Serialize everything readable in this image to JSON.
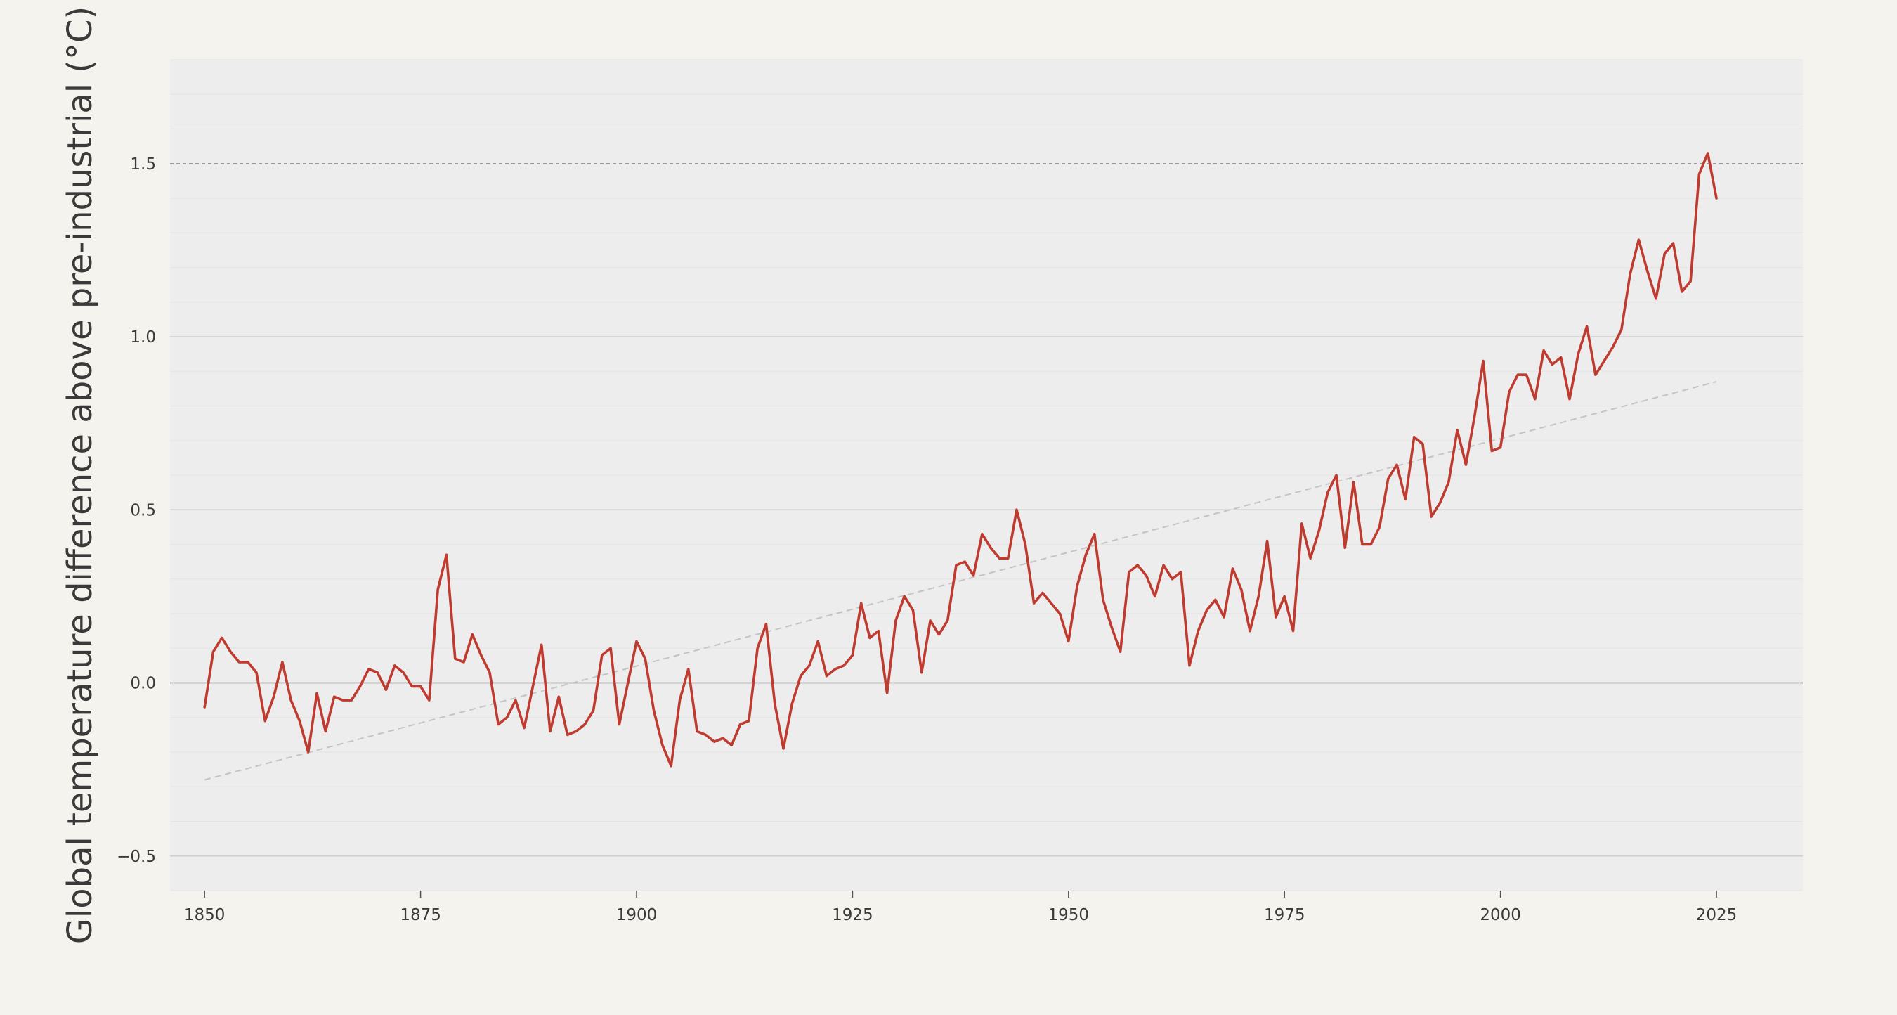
{
  "chart_data": {
    "type": "line",
    "title": "",
    "xlabel": "",
    "ylabel": "Global temperature difference above pre-industrial (°C)",
    "xlim": [
      1846,
      2035
    ],
    "ylim": [
      -0.6,
      1.8
    ],
    "xticks": [
      1850,
      1875,
      1900,
      1925,
      1950,
      1975,
      2000,
      2025
    ],
    "xtick_labels": [
      "1850",
      "1875",
      "1900",
      "1925",
      "1950",
      "1975",
      "2000",
      "2025"
    ],
    "yticks": [
      -0.5,
      0.0,
      0.5,
      1.0,
      1.5
    ],
    "ytick_labels": [
      "−0.5",
      "0.0",
      "0.5",
      "1.0",
      "1.5"
    ],
    "grid": true,
    "reference_lines": [
      {
        "y": 1.5,
        "style": "dashed",
        "color": "#9a9a9a"
      },
      {
        "y": 0.0,
        "style": "solid",
        "color": "#8a8a8a"
      }
    ],
    "series": [
      {
        "color": "#bf3a2f",
        "x_start": 1850,
        "x_step": 1,
        "values": [
          -0.07,
          0.09,
          0.13,
          0.09,
          0.06,
          0.06,
          0.03,
          -0.11,
          -0.04,
          0.06,
          -0.05,
          -0.11,
          -0.2,
          -0.03,
          -0.14,
          -0.04,
          -0.05,
          -0.05,
          -0.01,
          0.04,
          0.03,
          -0.02,
          0.05,
          0.03,
          -0.01,
          -0.01,
          -0.05,
          0.27,
          0.37,
          0.07,
          0.06,
          0.14,
          0.08,
          0.03,
          -0.12,
          -0.1,
          -0.05,
          -0.13,
          -0.01,
          0.11,
          -0.14,
          -0.04,
          -0.15,
          -0.14,
          -0.12,
          -0.08,
          0.08,
          0.1,
          -0.12,
          0.0,
          0.12,
          0.07,
          -0.08,
          -0.18,
          -0.24,
          -0.05,
          0.04,
          -0.14,
          -0.15,
          -0.17,
          -0.16,
          -0.18,
          -0.12,
          -0.11,
          0.1,
          0.17,
          -0.06,
          -0.19,
          -0.06,
          0.02,
          0.05,
          0.12,
          0.02,
          0.04,
          0.05,
          0.08,
          0.23,
          0.13,
          0.15,
          -0.03,
          0.18,
          0.25,
          0.21,
          0.03,
          0.18,
          0.14,
          0.18,
          0.34,
          0.35,
          0.31,
          0.43,
          0.39,
          0.36,
          0.36,
          0.5,
          0.4,
          0.23,
          0.26,
          0.23,
          0.2,
          0.12,
          0.28,
          0.37,
          0.43,
          0.24,
          0.16,
          0.09,
          0.32,
          0.34,
          0.31,
          0.25,
          0.34,
          0.3,
          0.32,
          0.05,
          0.15,
          0.21,
          0.24,
          0.19,
          0.33,
          0.27,
          0.15,
          0.25,
          0.41,
          0.19,
          0.25,
          0.15,
          0.46,
          0.36,
          0.44,
          0.55,
          0.6,
          0.39,
          0.58,
          0.4,
          0.4,
          0.45,
          0.59,
          0.63,
          0.53,
          0.71,
          0.69,
          0.48,
          0.52,
          0.58,
          0.73,
          0.63,
          0.77,
          0.93,
          0.67,
          0.68,
          0.84,
          0.89,
          0.89,
          0.82,
          0.96,
          0.92,
          0.94,
          0.82,
          0.95,
          1.03,
          0.89,
          0.93,
          0.97,
          1.02,
          1.18,
          1.28,
          1.19,
          1.11,
          1.24,
          1.27,
          1.13,
          1.16,
          1.47,
          1.53,
          1.4
        ]
      },
      {
        "color": "#c4c4c4",
        "style": "dashed",
        "x": [
          1850,
          2025
        ],
        "values": [
          -0.28,
          0.87
        ]
      }
    ]
  }
}
